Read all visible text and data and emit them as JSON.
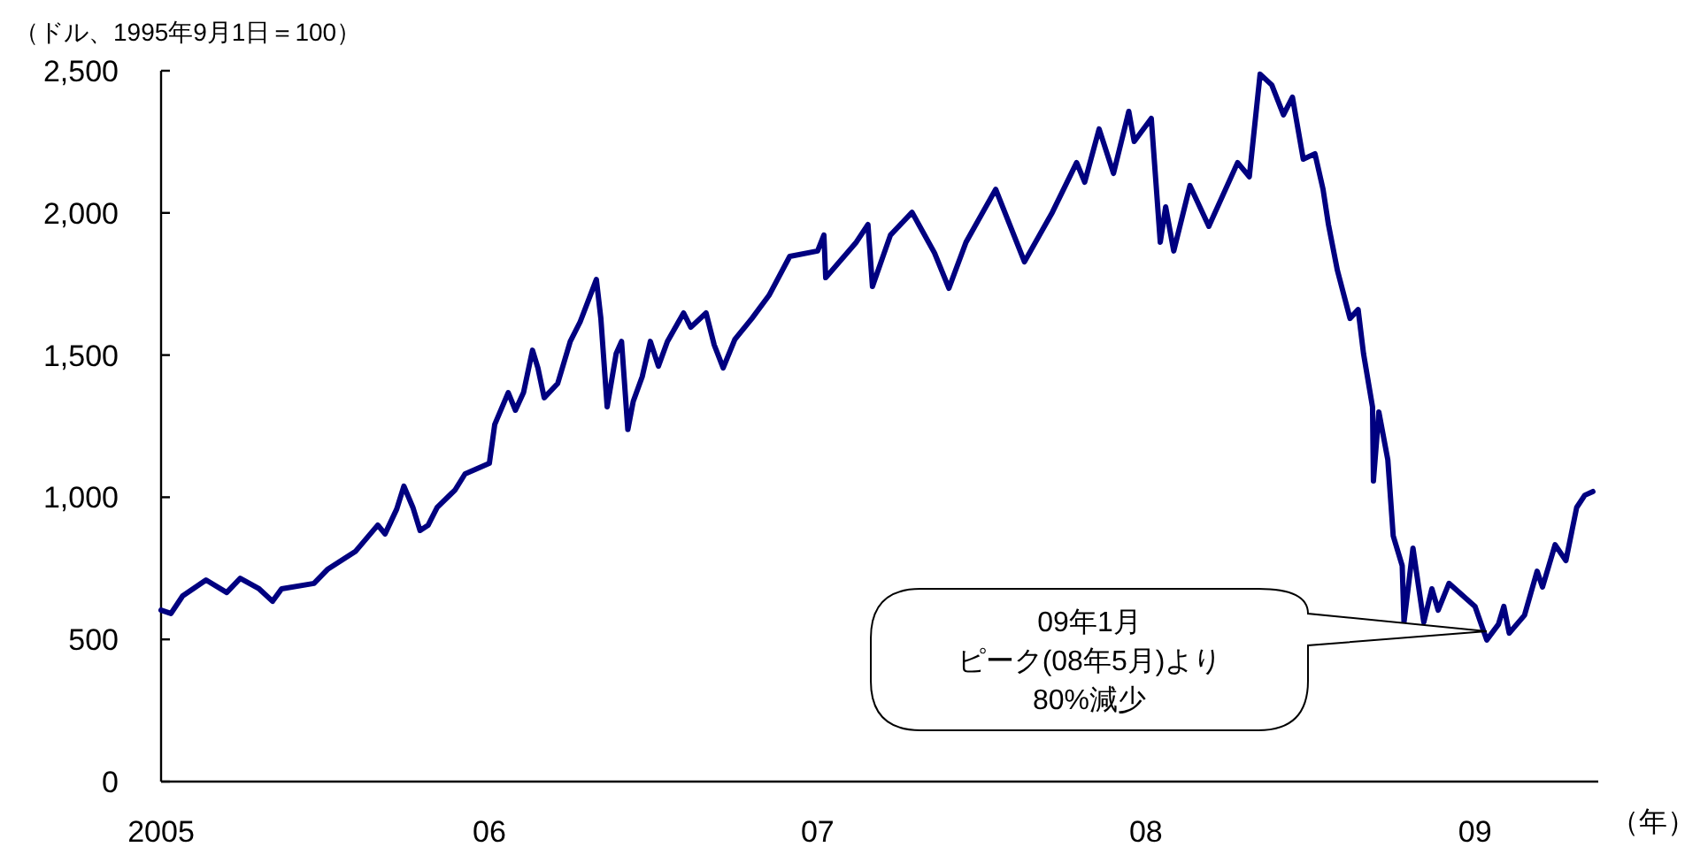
{
  "chart_data": {
    "type": "line",
    "ylabel": "（ドル、1995年9月1日＝100）",
    "xlabel": "（年）",
    "x": [
      "2005-01-01",
      "2005-01-12",
      "2005-01-25",
      "2005-02-20",
      "2005-03-15",
      "2005-03-30",
      "2005-04-20",
      "2005-05-05",
      "2005-05-15",
      "2005-06-20",
      "2005-07-05",
      "2005-08-05",
      "2005-08-30",
      "2005-09-07",
      "2005-09-20",
      "2005-09-28",
      "2005-10-08",
      "2005-10-16",
      "2005-10-25",
      "2005-11-04",
      "2005-11-24",
      "2005-12-05",
      "2006-01-01",
      "2006-01-07",
      "2006-01-22",
      "2006-01-30",
      "2006-02-08",
      "2006-02-18",
      "2006-02-24",
      "2006-03-03",
      "2006-03-18",
      "2006-04-01",
      "2006-04-12",
      "2006-04-30",
      "2006-05-05",
      "2006-05-12",
      "2006-05-22",
      "2006-05-28",
      "2006-06-04",
      "2006-06-10",
      "2006-06-20",
      "2006-06-29",
      "2006-07-08",
      "2006-07-18",
      "2006-08-05",
      "2006-08-13",
      "2006-08-30",
      "2006-09-08",
      "2006-09-18",
      "2006-10-01",
      "2006-10-20",
      "2006-11-08",
      "2006-12-01",
      "2007-01-01",
      "2007-01-08",
      "2007-01-10",
      "2007-02-13",
      "2007-02-26",
      "2007-03-03",
      "2007-03-23",
      "2007-04-16",
      "2007-05-11",
      "2007-05-27",
      "2007-06-15",
      "2007-07-18",
      "2007-08-19",
      "2007-09-19",
      "2007-10-16",
      "2007-10-25",
      "2007-11-10",
      "2007-11-26",
      "2007-12-13",
      "2007-12-19",
      "2008-01-07",
      "2008-01-17",
      "2008-01-23",
      "2008-02-01",
      "2008-02-19",
      "2008-03-11",
      "2008-04-12",
      "2008-04-25",
      "2008-05-07",
      "2008-05-20",
      "2008-06-02",
      "2008-06-12",
      "2008-06-24",
      "2008-07-07",
      "2008-07-16",
      "2008-07-22",
      "2008-08-01",
      "2008-08-15",
      "2008-08-24",
      "2008-08-30",
      "2008-09-09",
      "2008-09-10",
      "2008-09-16",
      "2008-09-26",
      "2008-10-02",
      "2008-10-12",
      "2008-10-14",
      "2008-10-24",
      "2008-11-05",
      "2008-11-14",
      "2008-11-21",
      "2008-12-03",
      "2009-01-01",
      "2009-01-14",
      "2009-01-27",
      "2009-02-02",
      "2009-02-08",
      "2009-02-25",
      "2009-03-11",
      "2009-03-17",
      "2009-03-31",
      "2009-04-12",
      "2009-04-24",
      "2009-05-03",
      "2009-05-12"
    ],
    "series": [
      {
        "color": "#000080",
        "values": [
          603,
          591,
          653,
          709,
          665,
          715,
          678,
          634,
          678,
          697,
          746,
          809,
          902,
          871,
          958,
          1039,
          964,
          883,
          902,
          964,
          1026,
          1082,
          1119,
          1256,
          1368,
          1306,
          1368,
          1517,
          1455,
          1350,
          1400,
          1548,
          1617,
          1766,
          1629,
          1318,
          1505,
          1548,
          1238,
          1337,
          1424,
          1548,
          1461,
          1548,
          1648,
          1598,
          1648,
          1536,
          1455,
          1555,
          1629,
          1710,
          1847,
          1866,
          1922,
          1772,
          1897,
          1959,
          1741,
          1922,
          2002,
          1859,
          1735,
          1897,
          2083,
          1828,
          2002,
          2177,
          2108,
          2295,
          2139,
          2357,
          2251,
          2332,
          1897,
          2021,
          1866,
          2096,
          1953,
          2177,
          2127,
          2488,
          2450,
          2345,
          2407,
          2189,
          2208,
          2083,
          1959,
          1797,
          1629,
          1660,
          1505,
          1318,
          1057,
          1300,
          1132,
          864,
          759,
          560,
          821,
          560,
          678,
          603,
          697,
          616,
          498,
          553,
          616,
          522,
          585,
          740,
          684,
          833,
          777,
          964,
          1007,
          1020
        ]
      }
    ],
    "xlim": [
      "2005-01-01",
      "2009-05-18"
    ],
    "xticks": [
      {
        "value": "2005-01-01",
        "label": "2005"
      },
      {
        "value": "2006-01-01",
        "label": "06"
      },
      {
        "value": "2007-01-01",
        "label": "07"
      },
      {
        "value": "2008-01-01",
        "label": "08"
      },
      {
        "value": "2009-01-01",
        "label": "09"
      }
    ],
    "ylim": [
      0,
      2500
    ],
    "yticks": [
      0,
      500,
      {
        "value": 1000,
        "label": "1,000"
      },
      {
        "value": 1500,
        "label": "1,500"
      },
      {
        "value": 2000,
        "label": "2,000"
      },
      {
        "value": 2500,
        "label": "2,500"
      }
    ],
    "grid": false,
    "marker": "none",
    "line_style": "solid",
    "annotations": [
      "09年1月",
      "ピーク(08年5月)より",
      "80%減少"
    ]
  }
}
